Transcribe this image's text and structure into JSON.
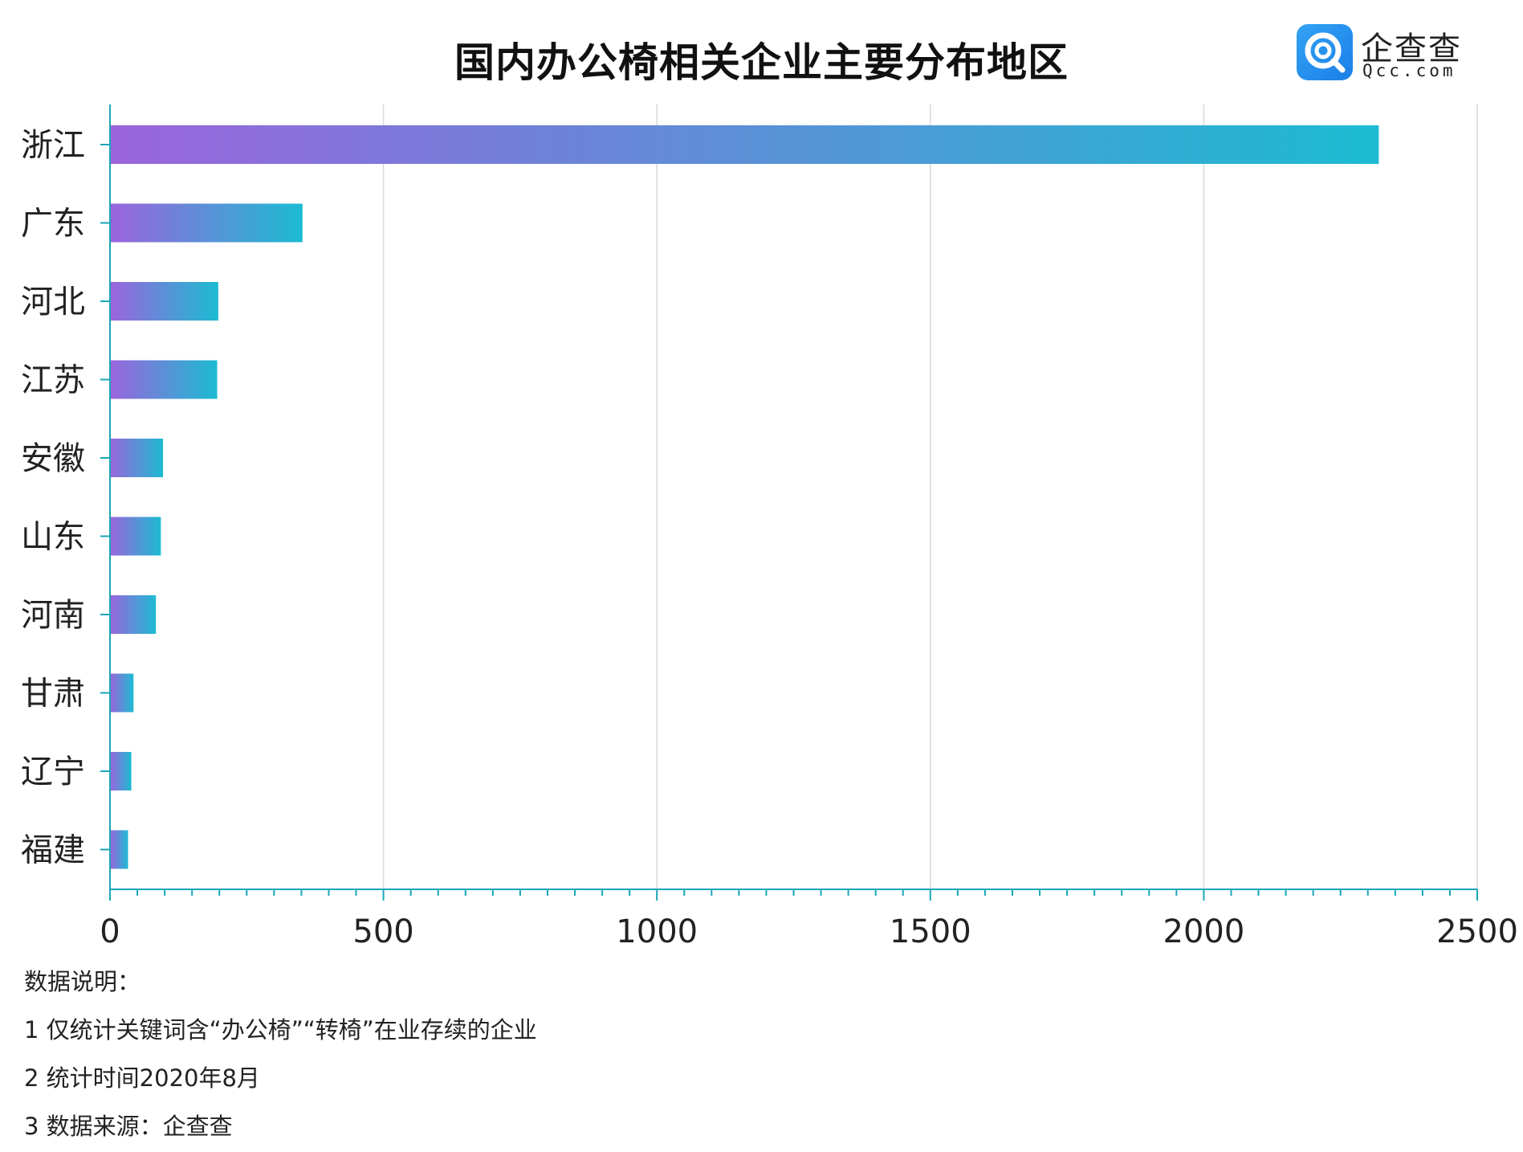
{
  "title": "国内办公椅相关企业主要分布地区",
  "logo": {
    "name_cn": "企查查",
    "name_en": "Qcc.com"
  },
  "chart_data": {
    "type": "bar",
    "orientation": "horizontal",
    "title": "国内办公椅相关企业主要分布地区",
    "categories": [
      "浙江",
      "广东",
      "河北",
      "江苏",
      "安徽",
      "山东",
      "河南",
      "甘肃",
      "辽宁",
      "福建"
    ],
    "values": [
      2320,
      352,
      198,
      196,
      97,
      93,
      84,
      43,
      39,
      33
    ],
    "xlim": [
      0,
      2500
    ],
    "x_ticks": [
      "0",
      "500",
      "1000",
      "1500",
      "2000",
      "2500"
    ],
    "grid": "vertical",
    "legend": "none",
    "bar_gradient": [
      "#9b64dc",
      "#1cbbd2"
    ],
    "axis_color": "#1aa6b7"
  },
  "notes": [
    "数据说明：",
    "1 仅统计关键词含“办公椅”“转椅”在业存续的企业",
    "2 统计时间2020年8月",
    "3 数据来源：企查查"
  ]
}
